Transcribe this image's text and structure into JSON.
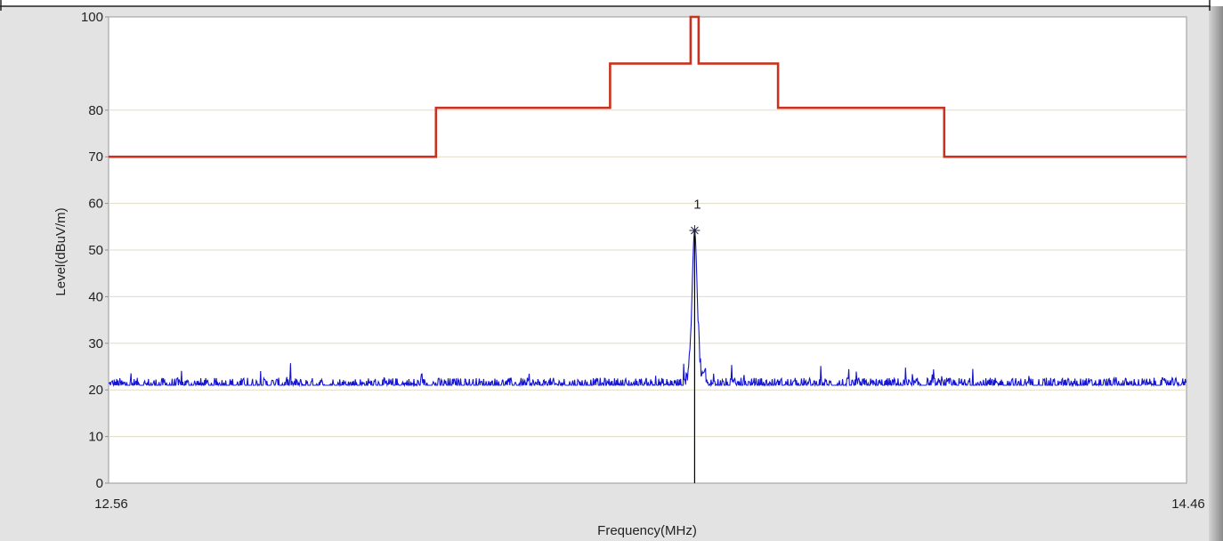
{
  "chart_data": {
    "type": "line",
    "title": "",
    "xlabel": "Frequency(MHz)",
    "ylabel": "Level(dBuV/m)",
    "xlim": [
      12.56,
      14.46
    ],
    "ylim": [
      0,
      100
    ],
    "x_tick_labels": [
      "12.56",
      "14.46"
    ],
    "y_ticks": [
      0,
      10,
      20,
      30,
      40,
      50,
      60,
      70,
      80,
      100
    ],
    "grid": true,
    "series": [
      {
        "role": "limit-mask",
        "color": "#c8321e",
        "points": [
          [
            12.56,
            70
          ],
          [
            13.137,
            70
          ],
          [
            13.137,
            80.5
          ],
          [
            13.444,
            80.5
          ],
          [
            13.444,
            90
          ],
          [
            13.586,
            90
          ],
          [
            13.586,
            100
          ],
          [
            13.6,
            100
          ],
          [
            13.6,
            90
          ],
          [
            13.74,
            90
          ],
          [
            13.74,
            80.5
          ],
          [
            14.033,
            80.5
          ],
          [
            14.033,
            70
          ],
          [
            14.46,
            70
          ]
        ]
      },
      {
        "role": "measured-emission",
        "color": "#1414d2",
        "noise_floor": 21,
        "peak": {
          "x": 13.593,
          "y": 54.2
        }
      }
    ],
    "markers": [
      {
        "label": "1",
        "x": 13.593,
        "y": 54.2
      }
    ],
    "colors": {
      "panel": "#e3e3e3",
      "plot_background": "#ffffff",
      "grid": "#e0dcc8",
      "axis": "#8f8f8f",
      "marker_line": "#000000"
    }
  }
}
